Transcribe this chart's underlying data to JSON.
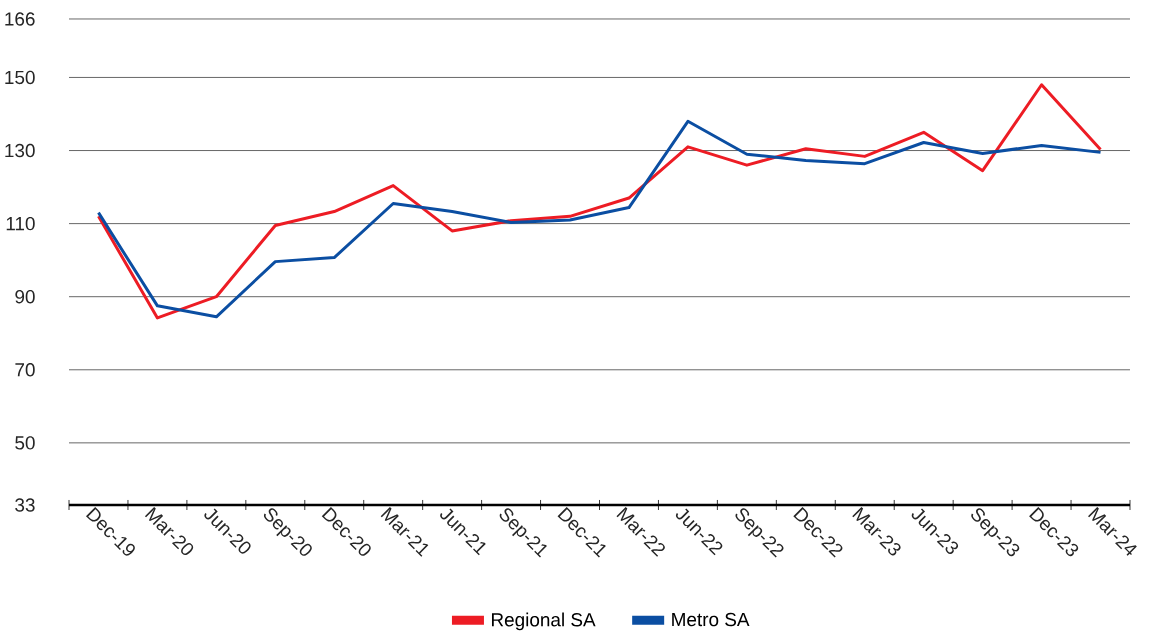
{
  "chart_data": {
    "type": "line",
    "categories": [
      "Dec-19",
      "Mar-20",
      "Jun-20",
      "Sep-20",
      "Dec-20",
      "Mar-21",
      "Jun-21",
      "Sep-21",
      "Dec-21",
      "Mar-22",
      "Jun-22",
      "Sep-22",
      "Dec-22",
      "Mar-23",
      "Jun-23",
      "Sep-23",
      "Dec-23",
      "Mar-24"
    ],
    "series": [
      {
        "name": "Regional SA",
        "color": "#ed1c24",
        "values": [
          112,
          84.2,
          90,
          109.5,
          113.3,
          120.4,
          108,
          110.8,
          112,
          117,
          131,
          126,
          130.5,
          128.4,
          135,
          124.5,
          148,
          130.3
        ]
      },
      {
        "name": "Metro SA",
        "color": "#0b4ea2",
        "values": [
          113,
          87.5,
          84.5,
          99.6,
          100.7,
          115.5,
          113.3,
          110.3,
          111,
          114.4,
          138,
          129,
          127.3,
          126.4,
          132.2,
          129.2,
          131.4,
          129.5
        ]
      }
    ],
    "ylim": [
      33,
      166
    ],
    "yticks": [
      33,
      50,
      70,
      90,
      110,
      130,
      150,
      166
    ],
    "grid": "y",
    "legend": "bottom",
    "marker": "none",
    "line_style": "solid"
  }
}
